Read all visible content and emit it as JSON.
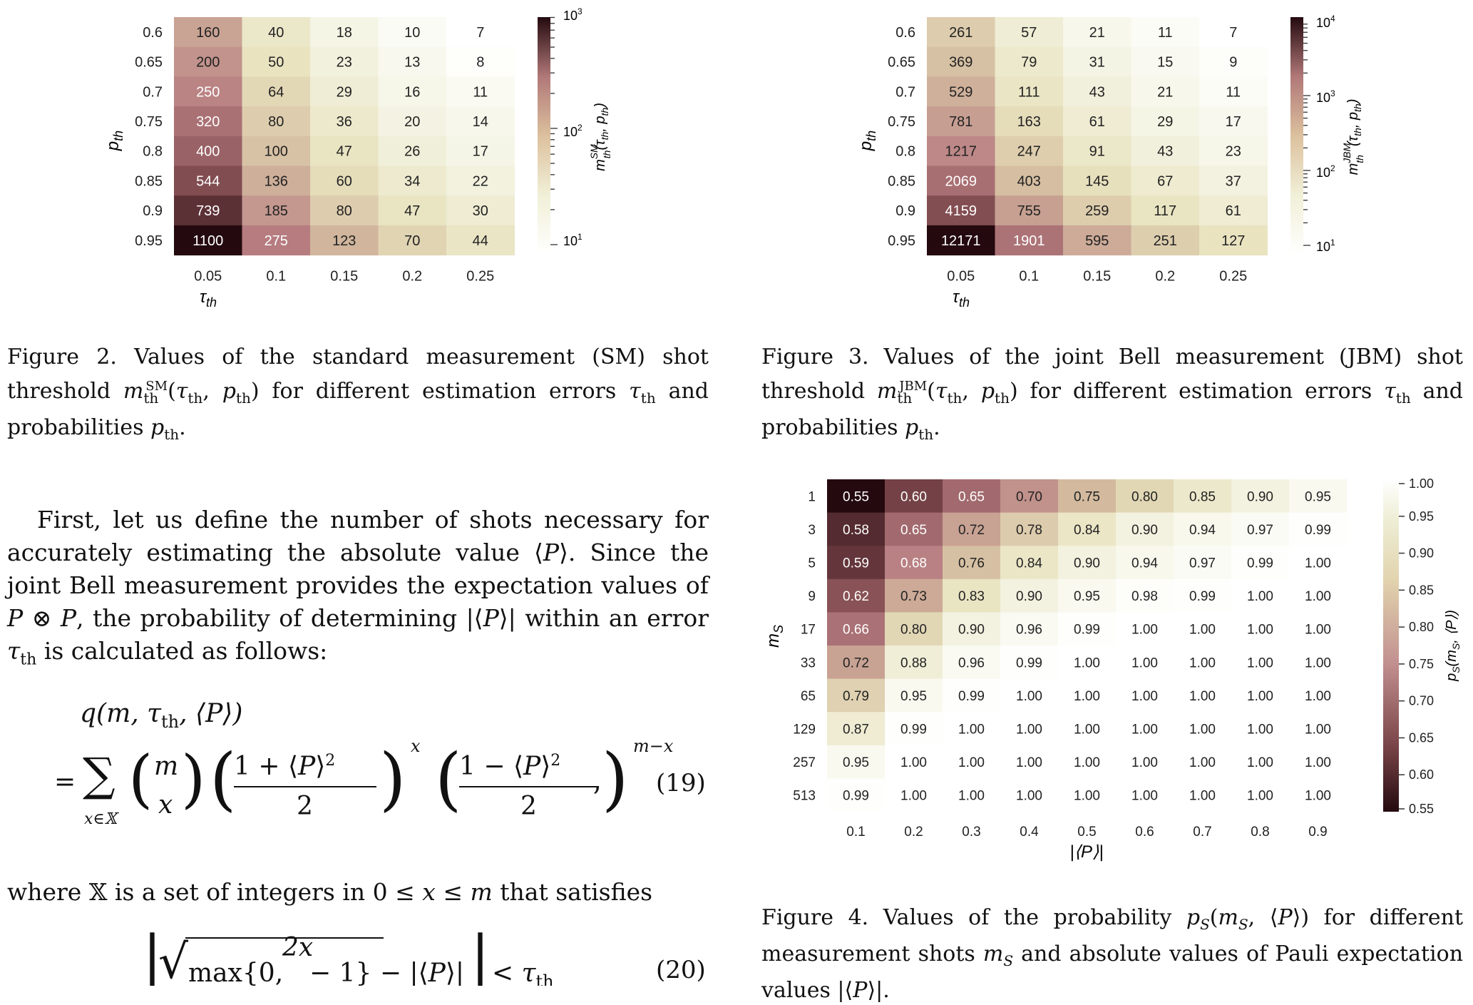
{
  "colors": {
    "dark": "#2a0e12",
    "mid": "#b87e82",
    "light": "#f3eee0",
    "white": "#ffffff"
  },
  "fig2": {
    "chart_data": {
      "type": "heatmap",
      "xlabel": "τth",
      "ylabel": "pth",
      "x": [
        "0.05",
        "0.1",
        "0.15",
        "0.2",
        "0.25"
      ],
      "y": [
        "0.6",
        "0.65",
        "0.7",
        "0.75",
        "0.8",
        "0.85",
        "0.9",
        "0.95"
      ],
      "values": [
        [
          160,
          40,
          18,
          10,
          7
        ],
        [
          200,
          50,
          23,
          13,
          8
        ],
        [
          250,
          64,
          29,
          16,
          11
        ],
        [
          320,
          80,
          36,
          20,
          14
        ],
        [
          400,
          100,
          47,
          26,
          17
        ],
        [
          544,
          136,
          60,
          34,
          22
        ],
        [
          739,
          185,
          80,
          47,
          30
        ],
        [
          1100,
          275,
          123,
          70,
          44
        ]
      ],
      "colorbar": {
        "scale": "log",
        "min": 7,
        "max": 1100,
        "ticks": [
          "10¹",
          "10²",
          "10³"
        ],
        "label": "m_th^SM(τ_th, p_th)"
      }
    },
    "caption": "Figure 2.  Values of the standard measurement (SM) shot threshold m_th^SM(τ_th, p_th) for different estimation errors τ_th and probabilities p_th."
  },
  "fig3": {
    "chart_data": {
      "type": "heatmap",
      "xlabel": "τth",
      "ylabel": "pth",
      "x": [
        "0.05",
        "0.1",
        "0.15",
        "0.2",
        "0.25"
      ],
      "y": [
        "0.6",
        "0.65",
        "0.7",
        "0.75",
        "0.8",
        "0.85",
        "0.9",
        "0.95"
      ],
      "values": [
        [
          261,
          57,
          21,
          11,
          7
        ],
        [
          369,
          79,
          31,
          15,
          9
        ],
        [
          529,
          111,
          43,
          21,
          11
        ],
        [
          781,
          163,
          61,
          29,
          17
        ],
        [
          1217,
          247,
          91,
          43,
          23
        ],
        [
          2069,
          403,
          145,
          67,
          37
        ],
        [
          4159,
          755,
          259,
          117,
          61
        ],
        [
          12171,
          1901,
          595,
          251,
          127
        ]
      ],
      "colorbar": {
        "scale": "log",
        "min": 7,
        "max": 12171,
        "ticks": [
          "10¹",
          "10²",
          "10³",
          "10⁴"
        ],
        "label": "m_th^JBM(τ_th, p_th)"
      }
    },
    "caption": "Figure 3.  Values of the joint Bell measurement (JBM) shot threshold m_th^JBM(τ_th, p_th) for different estimation errors τ_th and probabilities p_th."
  },
  "fig4": {
    "chart_data": {
      "type": "heatmap",
      "xlabel": "|⟨P⟩|",
      "ylabel": "mS",
      "x": [
        "0.1",
        "0.2",
        "0.3",
        "0.4",
        "0.5",
        "0.6",
        "0.7",
        "0.8",
        "0.9"
      ],
      "y": [
        "1",
        "3",
        "5",
        "9",
        "17",
        "33",
        "65",
        "129",
        "257",
        "513"
      ],
      "values": [
        [
          0.55,
          0.6,
          0.65,
          0.7,
          0.75,
          0.8,
          0.85,
          0.9,
          0.95
        ],
        [
          0.58,
          0.65,
          0.72,
          0.78,
          0.84,
          0.9,
          0.94,
          0.97,
          0.99
        ],
        [
          0.59,
          0.68,
          0.76,
          0.84,
          0.9,
          0.94,
          0.97,
          0.99,
          1.0
        ],
        [
          0.62,
          0.73,
          0.83,
          0.9,
          0.95,
          0.98,
          0.99,
          1.0,
          1.0
        ],
        [
          0.66,
          0.8,
          0.9,
          0.96,
          0.99,
          1.0,
          1.0,
          1.0,
          1.0
        ],
        [
          0.72,
          0.88,
          0.96,
          0.99,
          1.0,
          1.0,
          1.0,
          1.0,
          1.0
        ],
        [
          0.79,
          0.95,
          0.99,
          1.0,
          1.0,
          1.0,
          1.0,
          1.0,
          1.0
        ],
        [
          0.87,
          0.99,
          1.0,
          1.0,
          1.0,
          1.0,
          1.0,
          1.0,
          1.0
        ],
        [
          0.95,
          1.0,
          1.0,
          1.0,
          1.0,
          1.0,
          1.0,
          1.0,
          1.0
        ],
        [
          0.99,
          1.0,
          1.0,
          1.0,
          1.0,
          1.0,
          1.0,
          1.0,
          1.0
        ]
      ],
      "colorbar": {
        "scale": "linear",
        "min": 0.55,
        "max": 1.0,
        "ticks": [
          "0.55",
          "0.60",
          "0.65",
          "0.70",
          "0.75",
          "0.80",
          "0.85",
          "0.90",
          "0.95",
          "1.00"
        ],
        "label": "p_S(m_S, ⟨P⟩)"
      }
    },
    "caption": "Figure 4.  Values of the probability p_S(m_S, ⟨P⟩) for different measurement shots m_S and absolute values of Pauli expectation values |⟨P⟩|."
  },
  "body": {
    "para1": "First, let us define the number of shots necessary for accurately estimating the absolute value ⟨P⟩. Since the joint Bell measurement provides the expectation values of P ⊗ P, the probability of determining |⟨P⟩| within an error τ_th is calculated as follows:",
    "eq19_lhs": "q(m, τ_th, ⟨P⟩)",
    "eq19_rhs": "= Σ_{x∈𝕏} (m choose x) ((1 + ⟨P⟩²)/2)^x ((1 − ⟨P⟩²)/2)^(m−x) ,",
    "eq19_num": "(19)",
    "para2": "where 𝕏 is a set of integers in 0 ≤ x ≤ m that satisfies",
    "eq20": "| √(max{0, 2x/m − 1}) − |⟨P⟩| | < τ_th",
    "eq20_num": "(20)"
  }
}
